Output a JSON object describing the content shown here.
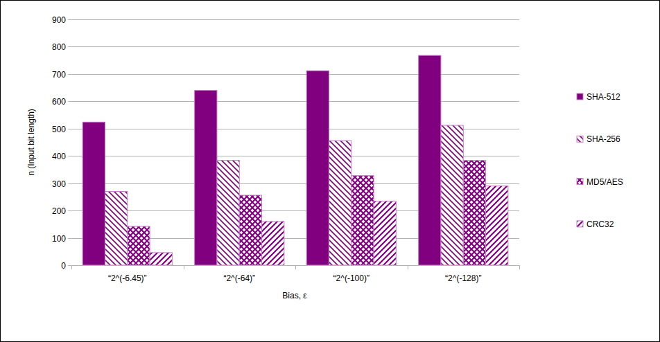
{
  "chart_data": {
    "type": "bar",
    "categories": [
      "“2^(-6.45)”",
      "“2^(-64)”",
      "“2^(-100)”",
      "“2^(-128)”"
    ],
    "series": [
      {
        "name": "SHA-512",
        "color": "#800080",
        "values": [
          524,
          640,
          712,
          768
        ]
      },
      {
        "name": "SHA-256",
        "color": "#800080",
        "values": [
          270,
          384,
          456,
          512
        ]
      },
      {
        "name": "MD5/AES",
        "color": "#800080",
        "values": [
          142,
          256,
          328,
          384
        ]
      },
      {
        "name": "CRC32",
        "color": "#800080",
        "values": [
          46,
          160,
          234,
          290
        ]
      }
    ],
    "x_label": "Bias, ε",
    "y_label": "n (Input bit length)",
    "ylim": [
      0,
      900
    ],
    "yticks": [
      0,
      100,
      200,
      300,
      400,
      500,
      600,
      700,
      800,
      900
    ],
    "grid": true,
    "legend": "right"
  }
}
